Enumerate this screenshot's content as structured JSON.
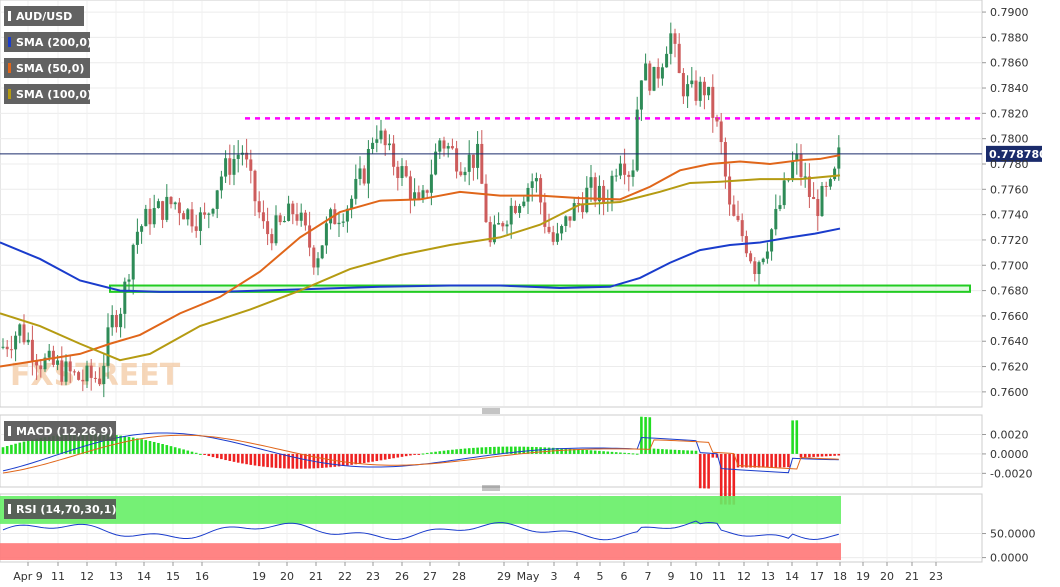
{
  "chart_data": {
    "type": "candlestick",
    "watermark": "FXSTREET",
    "price_pane": {
      "legend": [
        {
          "label": "AUD/USD",
          "swatch": "#ffffff"
        },
        {
          "label": "SMA (200,0)",
          "swatch": "#1a3ccc"
        },
        {
          "label": "SMA (50,0)",
          "swatch": "#e0661a"
        },
        {
          "label": "SMA (100,0)",
          "swatch": "#b59b12"
        }
      ],
      "ylim": [
        0.7592,
        0.7904
      ],
      "ticks": [
        "0.7900",
        "0.7880",
        "0.7860",
        "0.7840",
        "0.7820",
        "0.7800",
        "0.7780",
        "0.7760",
        "0.7740",
        "0.7720",
        "0.7700",
        "0.7680",
        "0.7660",
        "0.7640",
        "0.7620",
        "0.7600"
      ],
      "tick_values": [
        0.79,
        0.788,
        0.786,
        0.784,
        0.782,
        0.78,
        0.778,
        0.776,
        0.774,
        0.772,
        0.77,
        0.768,
        0.766,
        0.764,
        0.762,
        0.76
      ],
      "current_price": {
        "value": 0.7788,
        "label": "0.778780",
        "color": "#1a2b6b"
      },
      "resistance_level": {
        "value": 0.7816,
        "color": "#ff00ff"
      },
      "support_zone": {
        "low": 0.7679,
        "high": 0.7684,
        "color": "#22cc22"
      },
      "sma_colors": {
        "sma200": "#1a3ccc",
        "sma50": "#e0661a",
        "sma100": "#b59b12"
      },
      "candle_colors": {
        "up": "#2e8b57",
        "down": "#cd5c5c"
      }
    },
    "macd_pane": {
      "label": "MACD (12,26,9)",
      "ylim": [
        -0.0032,
        0.0038
      ],
      "ticks": [
        "0.0020",
        "0.0000",
        "-0.0020"
      ],
      "tick_values": [
        0.002,
        0,
        -0.002
      ]
    },
    "rsi_pane": {
      "label": "RSI (14,70,30,1)",
      "ylim": [
        -5,
        128
      ],
      "ticks": [
        "50.0000",
        "0.0000"
      ],
      "tick_values": [
        50,
        0
      ],
      "overbought_color": "#66ee66",
      "oversold_color": "#ff7777"
    },
    "x_axis": {
      "labels": [
        "Apr 9",
        "11",
        "12",
        "13",
        "14",
        "15",
        "16",
        "19",
        "20",
        "21",
        "22",
        "23",
        "26",
        "27",
        "28",
        "29",
        "May",
        "3",
        "4",
        "5",
        "6",
        "7",
        "9",
        "10",
        "11",
        "12",
        "13",
        "14",
        "17",
        "18",
        "19",
        "20",
        "21",
        "23"
      ]
    }
  }
}
